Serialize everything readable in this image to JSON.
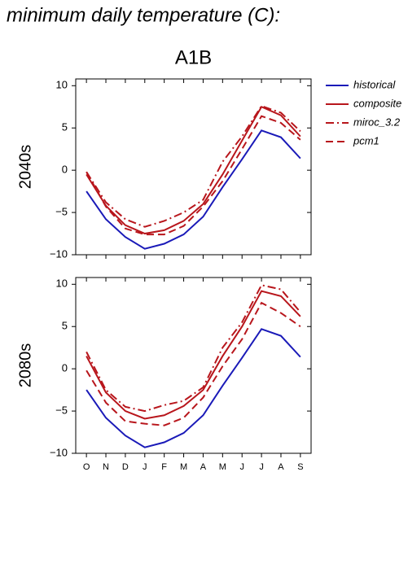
{
  "title": "minimum daily temperature (C):",
  "chart_data": [
    {
      "type": "line",
      "title": "A1B",
      "ylabel": "2040s",
      "categories": [
        null,
        null,
        null,
        null,
        null,
        null,
        null,
        null,
        null,
        null,
        null,
        null
      ],
      "ylim": [
        -10,
        10.8
      ],
      "yticks": [
        {
          "value": -10,
          "label": "−10"
        },
        {
          "value": -5,
          "label": "−5"
        },
        0,
        5,
        10
      ],
      "legend": "outside-right",
      "series": [
        {
          "name": "historical",
          "color": "#1a1ab8",
          "dash": "solid",
          "values": [
            -2.5,
            -5.8,
            -7.9,
            -9.3,
            -8.7,
            -7.6,
            -5.5,
            -2,
            1.3,
            4.7,
            3.9,
            1.4
          ]
        },
        {
          "name": "composite",
          "color": "#b8161c",
          "dash": "solid",
          "values": [
            -0.5,
            -4.2,
            -6.5,
            -7.5,
            -7.1,
            -6,
            -4,
            -0.5,
            3.5,
            7.5,
            6.5,
            4
          ]
        },
        {
          "name": "miroc_3.2",
          "color": "#b8161c",
          "dash": "dashdot",
          "values": [
            -0.2,
            -3.8,
            -5.8,
            -6.7,
            -6,
            -5,
            -3.5,
            1,
            4,
            7.6,
            6.8,
            4.6
          ]
        },
        {
          "name": "pcm1",
          "color": "#b8161c",
          "dash": "dashed",
          "values": [
            -0.2,
            -4.3,
            -6.9,
            -7.6,
            -7.6,
            -6.6,
            -4.3,
            -1.3,
            2.5,
            6.4,
            5.6,
            3.6
          ]
        }
      ]
    },
    {
      "type": "line",
      "ylabel": "2080s",
      "categories": [
        "O",
        "N",
        "D",
        "J",
        "F",
        "M",
        "A",
        "M",
        "J",
        "J",
        "A",
        "S"
      ],
      "ylim": [
        -10,
        10.8
      ],
      "yticks": [
        {
          "value": -10,
          "label": "−10"
        },
        {
          "value": -5,
          "label": "−5"
        },
        0,
        5,
        10
      ],
      "series": [
        {
          "color": "#1a1ab8",
          "dash": "solid",
          "values": [
            -2.5,
            -5.8,
            -7.9,
            -9.3,
            -8.7,
            -7.6,
            -5.5,
            -2,
            1.3,
            4.7,
            3.9,
            1.4
          ]
        },
        {
          "color": "#b8161c",
          "dash": "solid",
          "values": [
            1.5,
            -2.8,
            -5,
            -5.9,
            -5.5,
            -4.4,
            -2.5,
            1.5,
            5,
            9.2,
            8.6,
            6.2
          ]
        },
        {
          "color": "#b8161c",
          "dash": "dashdot",
          "values": [
            2,
            -2.5,
            -4.5,
            -5,
            -4.3,
            -3.8,
            -2.2,
            2.5,
            5.5,
            9.9,
            9.4,
            6.7
          ]
        },
        {
          "color": "#b8161c",
          "dash": "dashed",
          "values": [
            -0.2,
            -4,
            -6.2,
            -6.5,
            -6.7,
            -5.8,
            -3.4,
            0.3,
            3.5,
            7.8,
            6.6,
            5
          ]
        }
      ]
    }
  ]
}
